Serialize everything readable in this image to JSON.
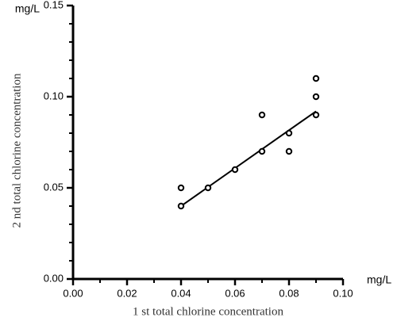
{
  "chart_data": {
    "type": "scatter",
    "x_label": "1 st total chlorine concentration",
    "y_label": "2 nd total chlorine concentration",
    "x_unit": "mg/L",
    "y_unit": "mg/L",
    "x": [
      0.04,
      0.04,
      0.05,
      0.06,
      0.07,
      0.07,
      0.08,
      0.08,
      0.09,
      0.09,
      0.09
    ],
    "values": [
      0.05,
      0.04,
      0.05,
      0.06,
      0.09,
      0.07,
      0.08,
      0.07,
      0.11,
      0.1,
      0.09
    ],
    "color": "#000000",
    "fit_line": {
      "x": [
        0.04,
        0.09
      ],
      "values": [
        0.04,
        0.092
      ]
    },
    "xlim": [
      0,
      0.1
    ],
    "ylim": [
      0,
      0.15
    ],
    "xticks": [
      {
        "value": 0,
        "label": "0.00"
      },
      {
        "value": 0.02,
        "label": "0.02"
      },
      {
        "value": 0.04,
        "label": "0.04"
      },
      {
        "value": 0.06,
        "label": "0.06"
      },
      {
        "value": 0.08,
        "label": "0.08"
      },
      {
        "value": 0.1,
        "label": "0.10"
      }
    ],
    "yticks": [
      {
        "value": 0,
        "label": "0.00"
      },
      {
        "value": 0.05,
        "label": "0.05"
      },
      {
        "value": 0.1,
        "label": "0.10"
      },
      {
        "value": 0.15,
        "label": "0.15"
      }
    ],
    "xminorticks": [
      0.01,
      0.03,
      0.05,
      0.07,
      0.09
    ],
    "yminorticks": [
      0.01,
      0.02,
      0.03,
      0.04,
      0.06,
      0.07,
      0.08,
      0.09,
      0.11,
      0.12,
      0.13,
      0.14
    ],
    "grid": false
  }
}
